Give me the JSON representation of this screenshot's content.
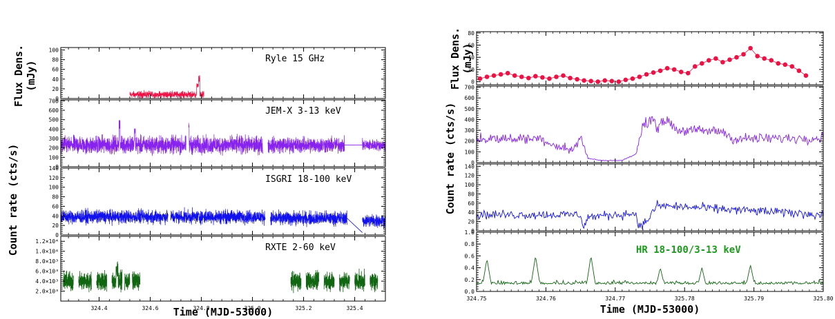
{
  "chart_data": [
    {
      "type": "line",
      "name": "left-figure",
      "xlabel": "Time (MJD-53000)",
      "shared_ylabels": [
        "Flux Dens.",
        "Count rate (cts/s)"
      ],
      "xlim": [
        324.25,
        325.52
      ],
      "xticks": [
        324.4,
        324.6,
        324.8,
        325.0,
        325.2,
        325.4
      ],
      "xtick_labels": [
        "324.4",
        "324.6",
        "324.8",
        "325.0",
        "325.2",
        "325.4"
      ],
      "panels": [
        {
          "title": "Ryle 15 GHz",
          "ylabel": "(mJy)",
          "ylim": [
            0,
            105
          ],
          "yticks": [
            0,
            20,
            40,
            60,
            80,
            100
          ],
          "ytick_labels": [
            "0",
            "20",
            "40",
            "60",
            "80",
            "100"
          ],
          "color": "#ee1144",
          "series": [
            {
              "x_range": [
                324.52,
                324.81
              ],
              "typical": 8,
              "spread": 6,
              "peaks": [
                {
                  "x": 324.79,
                  "y": 48
                },
                {
                  "x": 324.785,
                  "y": 32
                }
              ]
            }
          ]
        },
        {
          "title": "JEM-X 3-13 keV",
          "ylim": [
            0,
            710
          ],
          "yticks": [
            0,
            100,
            200,
            300,
            400,
            500,
            600,
            700
          ],
          "ytick_labels": [
            "0",
            "100",
            "200",
            "300",
            "400",
            "500",
            "600",
            "700"
          ],
          "color": "#8822ee",
          "series": [
            {
              "x_range": [
                324.25,
                324.74
              ],
              "typical": 230,
              "spread": 80
            },
            {
              "x_range": [
                324.75,
                325.04
              ],
              "typical": 230,
              "spread": 80
            },
            {
              "x_range": [
                325.06,
                325.36
              ],
              "typical": 230,
              "spread": 70
            },
            {
              "x_range": [
                325.43,
                325.52
              ],
              "typical": 230,
              "spread": 50
            }
          ],
          "peaks": [
            {
              "x": 324.48,
              "y": 500
            },
            {
              "x": 324.75,
              "y": 470
            },
            {
              "x": 324.54,
              "y": 430
            }
          ]
        },
        {
          "title": "ISGRI 18-100 keV",
          "ylim": [
            0,
            140
          ],
          "yticks": [
            0,
            20,
            40,
            60,
            80,
            100,
            120,
            140
          ],
          "ytick_labels": [
            "0",
            "20",
            "40",
            "60",
            "80",
            "100",
            "120",
            "140"
          ],
          "color": "#1111ee",
          "series": [
            {
              "x_range": [
                324.25,
                324.67
              ],
              "typical": 38,
              "spread": 12
            },
            {
              "x_range": [
                324.68,
                325.05
              ],
              "typical": 38,
              "spread": 12
            },
            {
              "x_range": [
                325.07,
                325.37
              ],
              "typical": 35,
              "spread": 12
            },
            {
              "x_range": [
                325.43,
                325.52
              ],
              "typical": 30,
              "spread": 12
            }
          ]
        },
        {
          "title": "RXTE 2-60 keV",
          "ylim": [
            0,
            13000
          ],
          "yticks": [
            2000,
            4000,
            6000,
            8000,
            10000,
            12000
          ],
          "ytick_labels": [
            "2.0×10³",
            "4.0×10³",
            "6.0×10³",
            "8.0×10³",
            "1.0×10⁴",
            "1.2×10⁴"
          ],
          "color": "#116611",
          "segments": [
            [
              324.26,
              324.3
            ],
            [
              324.32,
              324.37
            ],
            [
              324.39,
              324.43
            ],
            [
              324.45,
              324.49
            ],
            [
              324.5,
              324.52
            ],
            [
              324.53,
              324.56
            ],
            [
              325.15,
              325.19
            ],
            [
              325.21,
              325.26
            ],
            [
              325.28,
              325.32
            ],
            [
              325.34,
              325.38
            ],
            [
              325.4,
              325.44
            ],
            [
              325.46,
              325.49
            ]
          ],
          "typical": 4000,
          "spread": 1500,
          "peaks": [
            {
              "x": 324.47,
              "y": 8000
            },
            {
              "x": 324.44,
              "y": 7000
            }
          ]
        }
      ]
    },
    {
      "type": "line",
      "name": "right-figure",
      "xlabel": "Time (MJD-53000)",
      "shared_ylabels": [
        "Flux Dens.",
        "Count rate (cts/s)"
      ],
      "xlim": [
        324.75,
        325.8
      ],
      "xticks": [
        324.75,
        324.76,
        324.77,
        325.78,
        325.79,
        325.8
      ],
      "xtick_labels": [
        "324.75",
        "324.76",
        "324.77",
        "325.78",
        "325.79",
        "325.80"
      ],
      "panels": [
        {
          "ylabel": "(mJy)",
          "ylim": [
            -5,
            82
          ],
          "yticks": [
            0,
            20,
            40,
            60,
            80
          ],
          "ytick_labels": [
            "0",
            "20",
            "40",
            "60",
            "80"
          ],
          "color": "#ee1144",
          "series": [
            {
              "x": [
                324.7505,
                324.7515,
                324.7525,
                324.7535,
                324.7545,
                324.7555,
                324.7565,
                324.7575,
                324.7585,
                324.7595,
                324.7605,
                324.7615,
                324.7625,
                324.7635,
                324.7645,
                324.7655,
                324.7665,
                324.7675,
                324.7685,
                324.7695,
                324.7705,
                324.7715,
                324.7725,
                324.7735,
                324.7745,
                324.7755,
                324.7765,
                324.7775,
                324.7785,
                324.7795,
                324.7805,
                324.7815,
                324.7825,
                324.7835,
                324.7845,
                324.7855,
                324.7865,
                324.7875,
                324.7885,
                324.7895,
                324.7905,
                324.7915,
                324.7925,
                324.7935,
                324.7945,
                324.7955,
                324.7965,
                324.7975
              ],
              "y": [
                5,
                8,
                10,
                12,
                14,
                10,
                8,
                6,
                9,
                7,
                5,
                8,
                10,
                6,
                4,
                2,
                1,
                0,
                2,
                1,
                0,
                3,
                5,
                8,
                12,
                15,
                18,
                22,
                20,
                16,
                14,
                25,
                30,
                35,
                38,
                32,
                36,
                40,
                45,
                55,
                42,
                38,
                35,
                30,
                28,
                25,
                18,
                10
              ]
            }
          ]
        },
        {
          "ylim": [
            0,
            710
          ],
          "yticks": [
            0,
            100,
            200,
            300,
            400,
            500,
            600,
            700
          ],
          "ytick_labels": [
            "0",
            "100",
            "200",
            "300",
            "400",
            "500",
            "600",
            "700"
          ],
          "color": "#8822ee",
          "profile": [
            [
              324.75,
              220
            ],
            [
              324.7595,
              225
            ],
            [
              324.7605,
              180
            ],
            [
              324.764,
              110
            ],
            [
              324.765,
              250
            ],
            [
              324.766,
              40
            ],
            [
              324.768,
              20
            ],
            [
              324.771,
              20
            ],
            [
              324.773,
              80
            ],
            [
              324.774,
              340
            ],
            [
              324.7755,
              430
            ],
            [
              324.776,
              320
            ],
            [
              324.7775,
              400
            ],
            [
              324.779,
              300
            ],
            [
              324.7855,
              290
            ],
            [
              324.787,
              220
            ],
            [
              324.8,
              230
            ]
          ],
          "spread": 70
        },
        {
          "ylim": [
            0,
            145
          ],
          "yticks": [
            0,
            20,
            40,
            60,
            80,
            100,
            120,
            140
          ],
          "ytick_labels": [
            "0",
            "20",
            "40",
            "60",
            "80",
            "100",
            "120",
            "140"
          ],
          "color": "#1111ee",
          "profile": [
            [
              324.75,
              35
            ],
            [
              324.765,
              35
            ],
            [
              324.7655,
              5
            ],
            [
              324.766,
              30
            ],
            [
              324.773,
              38
            ],
            [
              324.7735,
              5
            ],
            [
              324.775,
              30
            ],
            [
              324.776,
              55
            ],
            [
              324.8,
              35
            ]
          ],
          "spread": 14
        },
        {
          "title": "HR 18-100/3-13 keV",
          "ylim": [
            0,
            1.0
          ],
          "yticks": [
            0,
            0.2,
            0.4,
            0.6,
            0.8,
            1.0
          ],
          "ytick_labels": [
            "0.0",
            "0.2",
            "0.4",
            "0.6",
            "0.8",
            "1.0"
          ],
          "color": "#116611",
          "typical": 0.15,
          "spread": 0.08,
          "peaks": [
            {
              "x": 324.7515,
              "y": 0.55
            },
            {
              "x": 324.7585,
              "y": 0.6
            },
            {
              "x": 324.7665,
              "y": 0.6
            },
            {
              "x": 324.7765,
              "y": 0.4
            },
            {
              "x": 324.7895,
              "y": 0.45
            },
            {
              "x": 324.7825,
              "y": 0.4
            }
          ]
        }
      ]
    }
  ]
}
